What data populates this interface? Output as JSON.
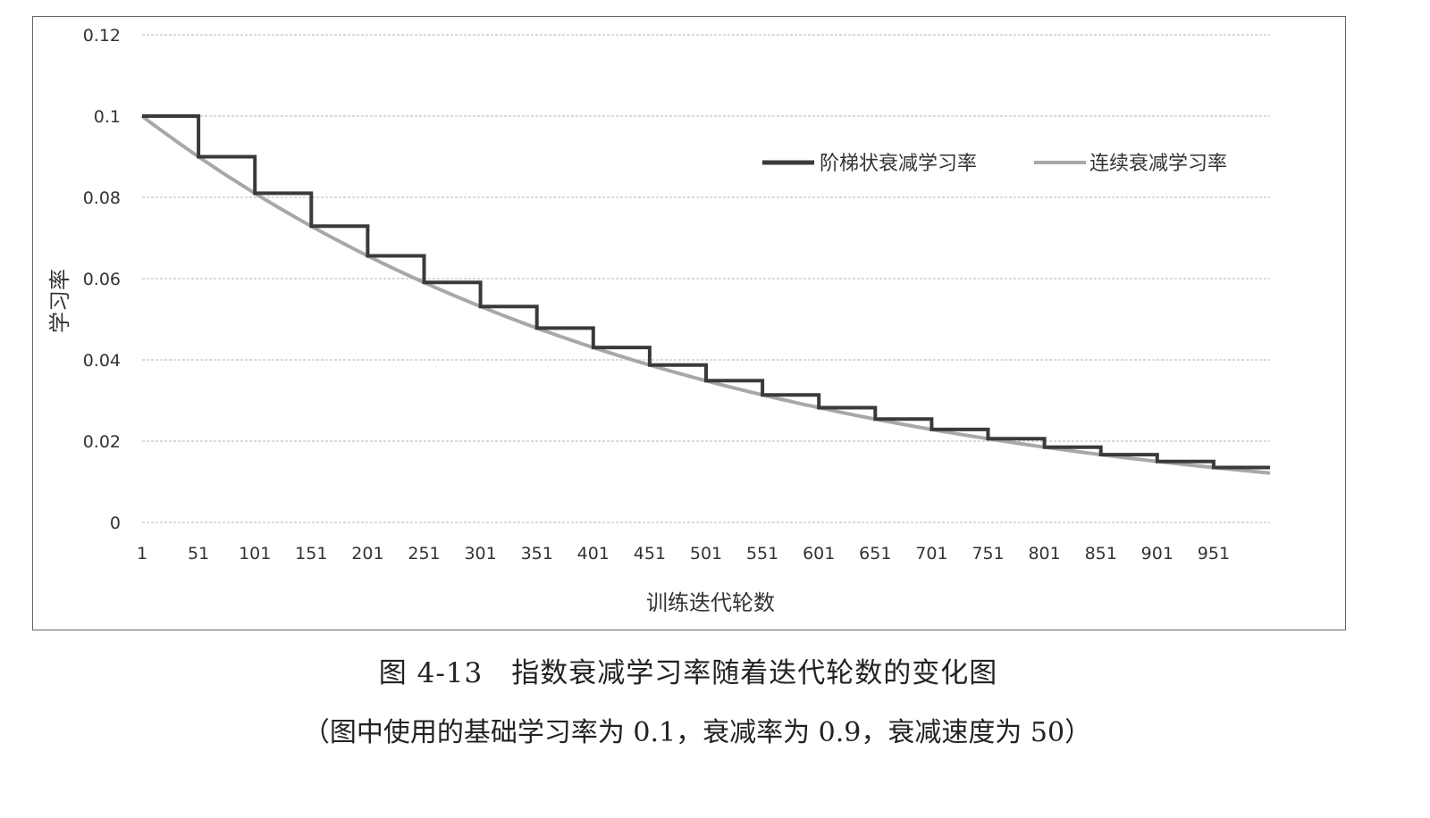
{
  "chart_data": {
    "type": "line",
    "ylabel": "学习率",
    "xlabel": "训练迭代轮数",
    "ylim": [
      0,
      0.12
    ],
    "y_ticks": [
      "0.12",
      "0.1",
      "0.08",
      "0.06",
      "0.04",
      "0.02",
      "0"
    ],
    "y_tick_values": [
      0.12,
      0.1,
      0.08,
      0.06,
      0.04,
      0.02,
      0
    ],
    "x_range": [
      1,
      1001
    ],
    "x_ticks": [
      "1",
      "51",
      "101",
      "151",
      "201",
      "251",
      "301",
      "351",
      "401",
      "451",
      "501",
      "551",
      "601",
      "651",
      "701",
      "751",
      "801",
      "851",
      "901",
      "951"
    ],
    "grid": true,
    "legend_position": "top-right",
    "series": [
      {
        "name": "阶梯状衰减学习率",
        "color": "#3a3a3a",
        "style": "step",
        "x": [
          1,
          51,
          101,
          151,
          201,
          251,
          301,
          351,
          401,
          451,
          501,
          551,
          601,
          651,
          701,
          751,
          801,
          851,
          901,
          951,
          1001
        ],
        "values": [
          0.1,
          0.09,
          0.081,
          0.0729,
          0.06561,
          0.05905,
          0.05314,
          0.04783,
          0.04305,
          0.03874,
          0.03487,
          0.03138,
          0.02824,
          0.02542,
          0.02288,
          0.02059,
          0.01853,
          0.01668,
          0.01501,
          0.01351,
          0.01216
        ]
      },
      {
        "name": "连续衰减学习率",
        "color": "#a8a8a8",
        "style": "smooth",
        "x": [
          1,
          51,
          101,
          151,
          201,
          251,
          301,
          351,
          401,
          451,
          501,
          551,
          601,
          651,
          701,
          751,
          801,
          851,
          901,
          951,
          1001
        ],
        "values": [
          0.1,
          0.09,
          0.081,
          0.0729,
          0.06561,
          0.05905,
          0.05314,
          0.04783,
          0.04305,
          0.03874,
          0.03487,
          0.03138,
          0.02824,
          0.02542,
          0.02288,
          0.02059,
          0.01853,
          0.01668,
          0.01501,
          0.01351,
          0.01216
        ]
      }
    ]
  },
  "caption": {
    "title": "图 4-13　指数衰减学习率随着迭代轮数的变化图",
    "note": "（图中使用的基础学习率为 0.1，衰减率为 0.9，衰减速度为 50）"
  }
}
